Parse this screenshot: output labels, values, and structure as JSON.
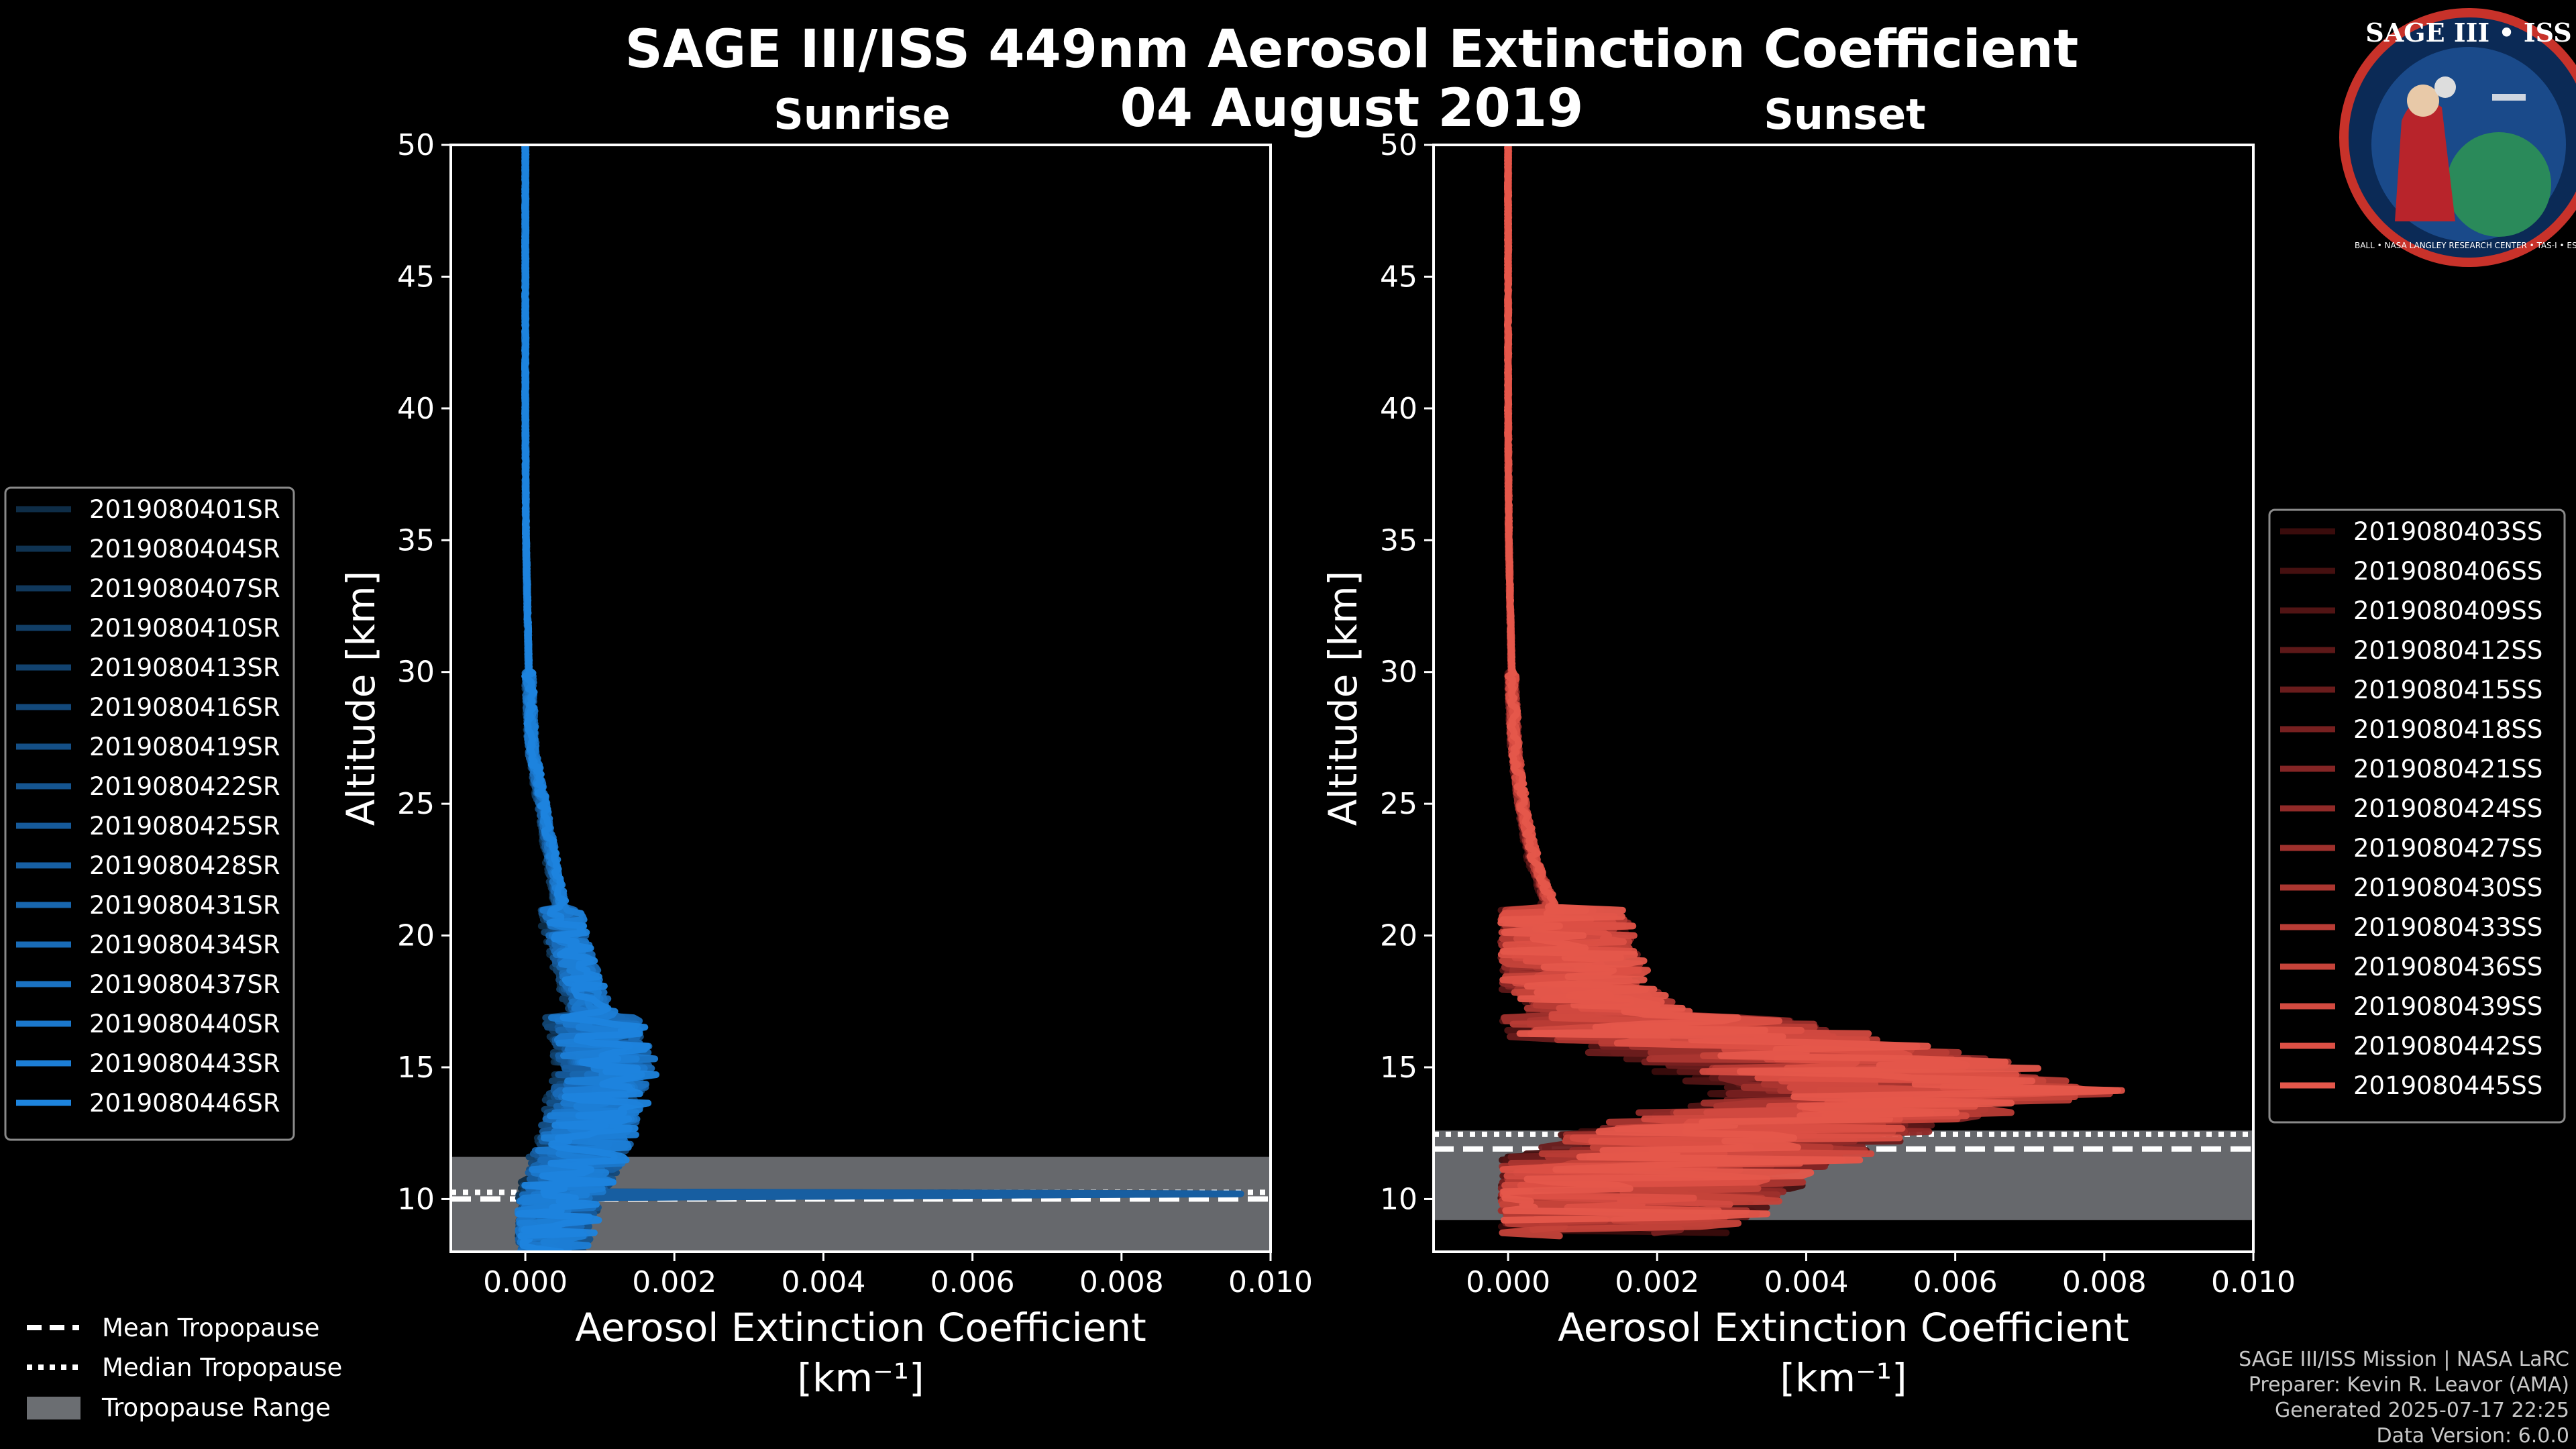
{
  "title": {
    "line1": "SAGE III/ISS 449nm Aerosol Extinction Coefficient",
    "line2": "04 August 2019"
  },
  "legend_bottom": {
    "mean": "Mean Tropopause",
    "median": "Median Tropopause",
    "range": "Tropopause Range"
  },
  "footer": {
    "line1": "SAGE III/ISS Mission | NASA LaRC",
    "line2": "Preparer: Kevin R. Leavor (AMA)",
    "line3": "Generated 2025-07-17 22:25",
    "line4": "Data Version: 6.0.0"
  },
  "logo": {
    "top": "SAGE III • ISS",
    "ring": "BALL • NASA LANGLEY RESEARCH CENTER • TAS-I • ESA"
  },
  "colors": {
    "sunrise_base": "#1c8fd3",
    "sunset_base": "#e0584c",
    "tropopause_fill": "#6b6e72"
  },
  "chart_data": [
    {
      "type": "line",
      "panel": "sunrise",
      "subtitle": "Sunrise",
      "title": "SAGE III/ISS 449nm Aerosol Extinction Coefficient 04 August 2019",
      "xlabel": "Aerosol Extinction Coefficient",
      "xlabel_unit": "[km⁻¹]",
      "ylabel": "Altitude [km]",
      "xlim": [
        -0.001,
        0.01
      ],
      "ylim": [
        8,
        50
      ],
      "xticks": [
        0.0,
        0.002,
        0.004,
        0.006,
        0.008,
        0.01
      ],
      "xtick_labels": [
        "0.000",
        "0.002",
        "0.004",
        "0.006",
        "0.008",
        "0.010"
      ],
      "yticks": [
        10,
        15,
        20,
        25,
        30,
        35,
        40,
        45,
        50
      ],
      "ytick_labels": [
        "10",
        "15",
        "20",
        "25",
        "30",
        "35",
        "40",
        "45",
        "50"
      ],
      "tropopause": {
        "mean": 10.0,
        "median": 9.9,
        "range": [
          8.0,
          11.6
        ]
      },
      "legend_position": "left",
      "series_names": [
        "2019080401SR",
        "2019080404SR",
        "2019080407SR",
        "2019080410SR",
        "2019080413SR",
        "2019080416SR",
        "2019080419SR",
        "2019080422SR",
        "2019080425SR",
        "2019080428SR",
        "2019080431SR",
        "2019080434SR",
        "2019080437SR",
        "2019080440SR",
        "2019080443SR",
        "2019080446SR"
      ],
      "series_colors": [
        "#0e2d47",
        "#0f3352",
        "#10385c",
        "#113e66",
        "#124370",
        "#13497b",
        "#144f86",
        "#155590",
        "#165a9a",
        "#1760a4",
        "#1866ae",
        "#196cb8",
        "#1a72c2",
        "#1b78cc",
        "#1c7ed6",
        "#1d84de"
      ],
      "profile": {
        "alt": [
          50,
          40,
          35,
          30,
          27,
          25,
          22,
          20,
          18,
          17,
          16,
          15,
          14,
          13,
          12,
          11,
          10.5,
          10.2,
          10,
          9.5,
          9,
          8.5,
          8
        ],
        "ext": [
          0.0,
          0.0,
          1e-05,
          5e-05,
          0.0001,
          0.00025,
          0.00045,
          0.0006,
          0.00085,
          0.001,
          0.0011,
          0.0012,
          0.0011,
          0.00095,
          0.00085,
          0.0007,
          0.0006,
          0.0005,
          0.00045,
          0.0004,
          0.00035,
          0.0003,
          0.00025
        ]
      },
      "max_excursion": {
        "alt": 10.2,
        "ext": 0.0096
      }
    },
    {
      "type": "line",
      "panel": "sunset",
      "subtitle": "Sunset",
      "title": "SAGE III/ISS 449nm Aerosol Extinction Coefficient 04 August 2019",
      "xlabel": "Aerosol Extinction Coefficient",
      "xlabel_unit": "[km⁻¹]",
      "ylabel": "Altitude [km]",
      "xlim": [
        -0.001,
        0.01
      ],
      "ylim": [
        8,
        50
      ],
      "xticks": [
        0.0,
        0.002,
        0.004,
        0.006,
        0.008,
        0.01
      ],
      "xtick_labels": [
        "0.000",
        "0.002",
        "0.004",
        "0.006",
        "0.008",
        "0.010"
      ],
      "yticks": [
        10,
        15,
        20,
        25,
        30,
        35,
        40,
        45,
        50
      ],
      "ytick_labels": [
        "10",
        "15",
        "20",
        "25",
        "30",
        "35",
        "40",
        "45",
        "50"
      ],
      "tropopause": {
        "mean": 11.9,
        "median": 12.1,
        "range": [
          9.2,
          12.6
        ]
      },
      "legend_position": "right",
      "series_names": [
        "2019080403SS",
        "2019080406SS",
        "2019080409SS",
        "2019080412SS",
        "2019080415SS",
        "2019080418SS",
        "2019080421SS",
        "2019080424SS",
        "2019080427SS",
        "2019080430SS",
        "2019080433SS",
        "2019080436SS",
        "2019080439SS",
        "2019080442SS",
        "2019080445SS"
      ],
      "series_colors": [
        "#3a0c0c",
        "#451010",
        "#511414",
        "#5d1818",
        "#6a1c1c",
        "#772020",
        "#842525",
        "#912a28",
        "#9e302c",
        "#ab3630",
        "#b83c35",
        "#c5433a",
        "#d24a40",
        "#dc5045",
        "#e5574b"
      ],
      "profile": {
        "alt": [
          50,
          40,
          35,
          30,
          27,
          25,
          23,
          22,
          21,
          20,
          19,
          18,
          17,
          16,
          15,
          14,
          13,
          12,
          11,
          10,
          9,
          8.5
        ],
        "ext": [
          0.0,
          0.0,
          1e-05,
          5e-05,
          0.0001,
          0.0002,
          0.00035,
          0.0005,
          0.0006,
          0.0007,
          0.0008,
          0.001,
          0.0015,
          0.003,
          0.005,
          0.006,
          0.004,
          0.003,
          0.002,
          0.0015,
          0.001,
          0.0008
        ]
      }
    }
  ]
}
